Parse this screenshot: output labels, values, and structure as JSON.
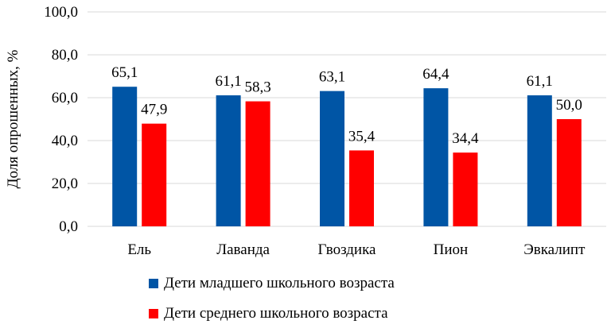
{
  "chart_data": {
    "type": "bar",
    "title": "",
    "xlabel": "",
    "ylabel": "Доля опрошенных, %",
    "ylim": [
      0,
      100
    ],
    "y_ticks": [
      "0,0",
      "20,0",
      "40,0",
      "60,0",
      "80,0",
      "100,0"
    ],
    "grid": true,
    "legend_position": "bottom",
    "categories": [
      "Ель",
      "Лаванда",
      "Гвоздика",
      "Пион",
      "Эвкалипт"
    ],
    "series": [
      {
        "name": "Дети младшего школьного возраста",
        "color": "#0055a5",
        "values": [
          65.1,
          61.1,
          63.1,
          64.4,
          61.1
        ],
        "labels": [
          "65,1",
          "61,1",
          "63,1",
          "64,4",
          "61,1"
        ]
      },
      {
        "name": "Дети среднего школьного возраста",
        "color": "#ff0000",
        "values": [
          47.9,
          58.3,
          35.4,
          34.4,
          50.0
        ],
        "labels": [
          "47,9",
          "58,3",
          "35,4",
          "34,4",
          "50,0"
        ]
      }
    ]
  }
}
